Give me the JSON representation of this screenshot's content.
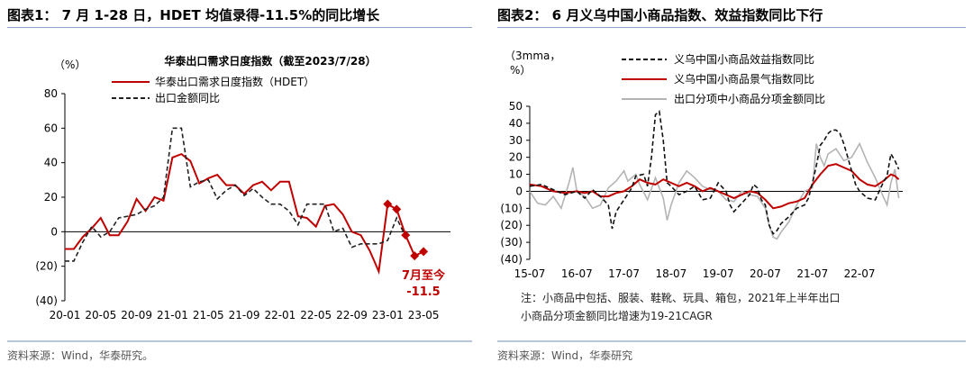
{
  "left": {
    "panel_title": "图表1：  7 月 1-28 日，HDET 均值录得-11.5%的同比增长",
    "source": "资料来源：Wind，华泰研究。",
    "chart_data": {
      "type": "line",
      "title": "华泰出口需求日度指数（截至2023/7/28）",
      "yunit": "（%）",
      "ylim": [
        -40,
        80
      ],
      "yticks": [
        -40,
        -20,
        0,
        20,
        40,
        60,
        80
      ],
      "ytick_labels": [
        "(40)",
        "(20)",
        "0",
        "20",
        "40",
        "60",
        "80"
      ],
      "xticks": [
        {
          "label": "20-01",
          "t": 0
        },
        {
          "label": "20-05",
          "t": 4
        },
        {
          "label": "20-09",
          "t": 8
        },
        {
          "label": "21-01",
          "t": 12
        },
        {
          "label": "21-05",
          "t": 16
        },
        {
          "label": "21-09",
          "t": 20
        },
        {
          "label": "22-01",
          "t": 24
        },
        {
          "label": "22-05",
          "t": 28
        },
        {
          "label": "22-09",
          "t": 32
        },
        {
          "label": "23-01",
          "t": 36
        },
        {
          "label": "23-05",
          "t": 40
        }
      ],
      "tmax": 43,
      "series": [
        {
          "name": "华泰出口需求日度指数（HDET）",
          "color": "#c00000",
          "style": "solid",
          "values": [
            -10,
            -10,
            -3,
            2,
            8,
            -2,
            -2,
            6,
            19,
            12,
            20,
            18,
            43,
            45,
            41,
            28,
            31,
            33,
            27,
            27,
            22,
            27,
            29,
            24,
            29,
            29,
            9,
            8,
            3,
            15,
            16,
            10,
            0,
            -2,
            -11,
            -23,
            16,
            13,
            -2,
            -14,
            -11.5
          ]
        },
        {
          "name": "出口金额同比",
          "color": "#222222",
          "style": "dash",
          "values": [
            -17,
            -17,
            -6,
            3,
            -3,
            0,
            8,
            9,
            10,
            13,
            15,
            20,
            60,
            60,
            26,
            29,
            30,
            19,
            24,
            27,
            21,
            25,
            20,
            16,
            16,
            12,
            4,
            16,
            16,
            16,
            0,
            2,
            -9,
            -7,
            -7,
            -7,
            -5,
            8,
            -3,
            null,
            null
          ]
        }
      ],
      "markers": {
        "color": "#c00000",
        "points": [
          {
            "t": 36,
            "v": 16
          },
          {
            "t": 37,
            "v": 13
          },
          {
            "t": 38,
            "v": -2
          },
          {
            "t": 39,
            "v": -14
          },
          {
            "t": 40,
            "v": -11.5
          }
        ]
      },
      "annotation": {
        "line1": "7月至今",
        "line2": "-11.5",
        "color": "#c00000"
      }
    }
  },
  "right": {
    "panel_title": "图表2：  6 月义乌中国小商品指数、效益指数同比下行",
    "source": "资料来源：Wind，华泰研究",
    "note_line1": "注：小商品中包括、服装、鞋靴、玩具、箱包，2021年上半年出口",
    "note_line2": "小商品分项金额同比增速为19-21CAGR",
    "chart_data": {
      "type": "line",
      "yunit_line1": "（3mma，",
      "yunit_line2": "%）",
      "ylim": [
        -40,
        50
      ],
      "yticks": [
        -40,
        -30,
        -20,
        -10,
        0,
        10,
        20,
        30,
        40,
        50
      ],
      "ytick_labels": [
        "(40)",
        "(30)",
        "(20)",
        "(10)",
        "0",
        "10",
        "20",
        "30",
        "40",
        "50"
      ],
      "xticks": [
        {
          "label": "15-07",
          "t": 0
        },
        {
          "label": "16-07",
          "t": 12
        },
        {
          "label": "17-07",
          "t": 24
        },
        {
          "label": "18-07",
          "t": 36
        },
        {
          "label": "19-07",
          "t": 48
        },
        {
          "label": "20-07",
          "t": 60
        },
        {
          "label": "21-07",
          "t": 72
        },
        {
          "label": "22-07",
          "t": 84
        }
      ],
      "tmax": 95,
      "series": [
        {
          "name": "义乌中国小商品效益指数同比",
          "color": "#111111",
          "style": "dash",
          "points": [
            [
              0,
              3
            ],
            [
              3,
              4
            ],
            [
              6,
              1
            ],
            [
              9,
              -2
            ],
            [
              12,
              0
            ],
            [
              14,
              -4
            ],
            [
              16,
              1
            ],
            [
              18,
              -3
            ],
            [
              20,
              -8
            ],
            [
              21,
              -22
            ],
            [
              22,
              -12
            ],
            [
              24,
              -5
            ],
            [
              26,
              2
            ],
            [
              27,
              9
            ],
            [
              29,
              10
            ],
            [
              30,
              3
            ],
            [
              31,
              20
            ],
            [
              32,
              45
            ],
            [
              33,
              47
            ],
            [
              34,
              30
            ],
            [
              35,
              5
            ],
            [
              36,
              3
            ],
            [
              38,
              -2
            ],
            [
              40,
              0
            ],
            [
              42,
              3
            ],
            [
              44,
              -5
            ],
            [
              46,
              -4
            ],
            [
              48,
              5
            ],
            [
              50,
              0
            ],
            [
              51,
              -8
            ],
            [
              52,
              -12
            ],
            [
              54,
              -7
            ],
            [
              56,
              -2
            ],
            [
              57,
              4
            ],
            [
              58,
              2
            ],
            [
              59,
              -5
            ],
            [
              60,
              -8
            ],
            [
              61,
              -20
            ],
            [
              62,
              -25
            ],
            [
              63,
              -23
            ],
            [
              64,
              -19
            ],
            [
              66,
              -15
            ],
            [
              68,
              -10
            ],
            [
              70,
              -8
            ],
            [
              71,
              -4
            ],
            [
              72,
              5
            ],
            [
              73,
              15
            ],
            [
              74,
              27
            ],
            [
              75,
              30
            ],
            [
              76,
              34
            ],
            [
              77,
              36
            ],
            [
              78,
              36
            ],
            [
              79,
              34
            ],
            [
              80,
              28
            ],
            [
              81,
              20
            ],
            [
              82,
              12
            ],
            [
              83,
              4
            ],
            [
              84,
              0
            ],
            [
              86,
              -4
            ],
            [
              88,
              -5
            ],
            [
              90,
              5
            ],
            [
              91,
              9
            ],
            [
              92,
              22
            ],
            [
              93,
              18
            ],
            [
              94,
              13
            ]
          ]
        },
        {
          "name": "义乌中国小商品景气指数同比",
          "color": "#c00000",
          "style": "solid",
          "points": [
            [
              0,
              4
            ],
            [
              3,
              3
            ],
            [
              6,
              0
            ],
            [
              9,
              -1
            ],
            [
              12,
              0
            ],
            [
              14,
              -1
            ],
            [
              16,
              0
            ],
            [
              18,
              -3
            ],
            [
              20,
              -3
            ],
            [
              22,
              -1
            ],
            [
              24,
              0
            ],
            [
              26,
              3
            ],
            [
              28,
              7
            ],
            [
              30,
              5
            ],
            [
              32,
              4
            ],
            [
              34,
              7
            ],
            [
              36,
              5
            ],
            [
              38,
              3
            ],
            [
              40,
              5
            ],
            [
              42,
              3
            ],
            [
              44,
              0
            ],
            [
              46,
              2
            ],
            [
              48,
              0
            ],
            [
              50,
              -2
            ],
            [
              52,
              -4
            ],
            [
              54,
              -2
            ],
            [
              56,
              0
            ],
            [
              58,
              -1
            ],
            [
              60,
              -5
            ],
            [
              62,
              -10
            ],
            [
              64,
              -9
            ],
            [
              66,
              -7
            ],
            [
              68,
              -6
            ],
            [
              70,
              -4
            ],
            [
              72,
              4
            ],
            [
              74,
              10
            ],
            [
              76,
              15
            ],
            [
              78,
              16
            ],
            [
              80,
              14
            ],
            [
              82,
              12
            ],
            [
              84,
              7
            ],
            [
              86,
              4
            ],
            [
              88,
              3
            ],
            [
              90,
              6
            ],
            [
              92,
              10
            ],
            [
              93,
              9
            ],
            [
              94,
              7
            ]
          ]
        },
        {
          "name": "出口分项中小商品分项金额同比",
          "color": "#b4b4b4",
          "style": "solid",
          "points": [
            [
              0,
              0
            ],
            [
              2,
              -7
            ],
            [
              4,
              -8
            ],
            [
              6,
              -3
            ],
            [
              8,
              -10
            ],
            [
              10,
              5
            ],
            [
              11,
              14
            ],
            [
              12,
              0
            ],
            [
              14,
              -3
            ],
            [
              16,
              -10
            ],
            [
              18,
              -8
            ],
            [
              20,
              2
            ],
            [
              22,
              6
            ],
            [
              24,
              12
            ],
            [
              25,
              6
            ],
            [
              27,
              10
            ],
            [
              28,
              4
            ],
            [
              30,
              -5
            ],
            [
              32,
              8
            ],
            [
              34,
              -4
            ],
            [
              35,
              -17
            ],
            [
              36,
              -8
            ],
            [
              38,
              5
            ],
            [
              40,
              12
            ],
            [
              42,
              8
            ],
            [
              44,
              3
            ],
            [
              46,
              1
            ],
            [
              48,
              0
            ],
            [
              50,
              -5
            ],
            [
              52,
              -6
            ],
            [
              54,
              0
            ],
            [
              56,
              -2
            ],
            [
              58,
              -3
            ],
            [
              60,
              -10
            ],
            [
              61,
              -20
            ],
            [
              62,
              -27
            ],
            [
              63,
              -28
            ],
            [
              64,
              -24
            ],
            [
              66,
              -18
            ],
            [
              68,
              -8
            ],
            [
              70,
              0
            ],
            [
              72,
              2
            ],
            [
              73,
              28
            ],
            [
              74,
              20
            ],
            [
              75,
              15
            ],
            [
              76,
              22
            ],
            [
              78,
              25
            ],
            [
              80,
              18
            ],
            [
              82,
              20
            ],
            [
              84,
              28
            ],
            [
              86,
              17
            ],
            [
              88,
              8
            ],
            [
              90,
              -3
            ],
            [
              91,
              -8
            ],
            [
              92,
              5
            ],
            [
              93,
              13
            ],
            [
              94,
              -4
            ]
          ]
        }
      ]
    }
  }
}
